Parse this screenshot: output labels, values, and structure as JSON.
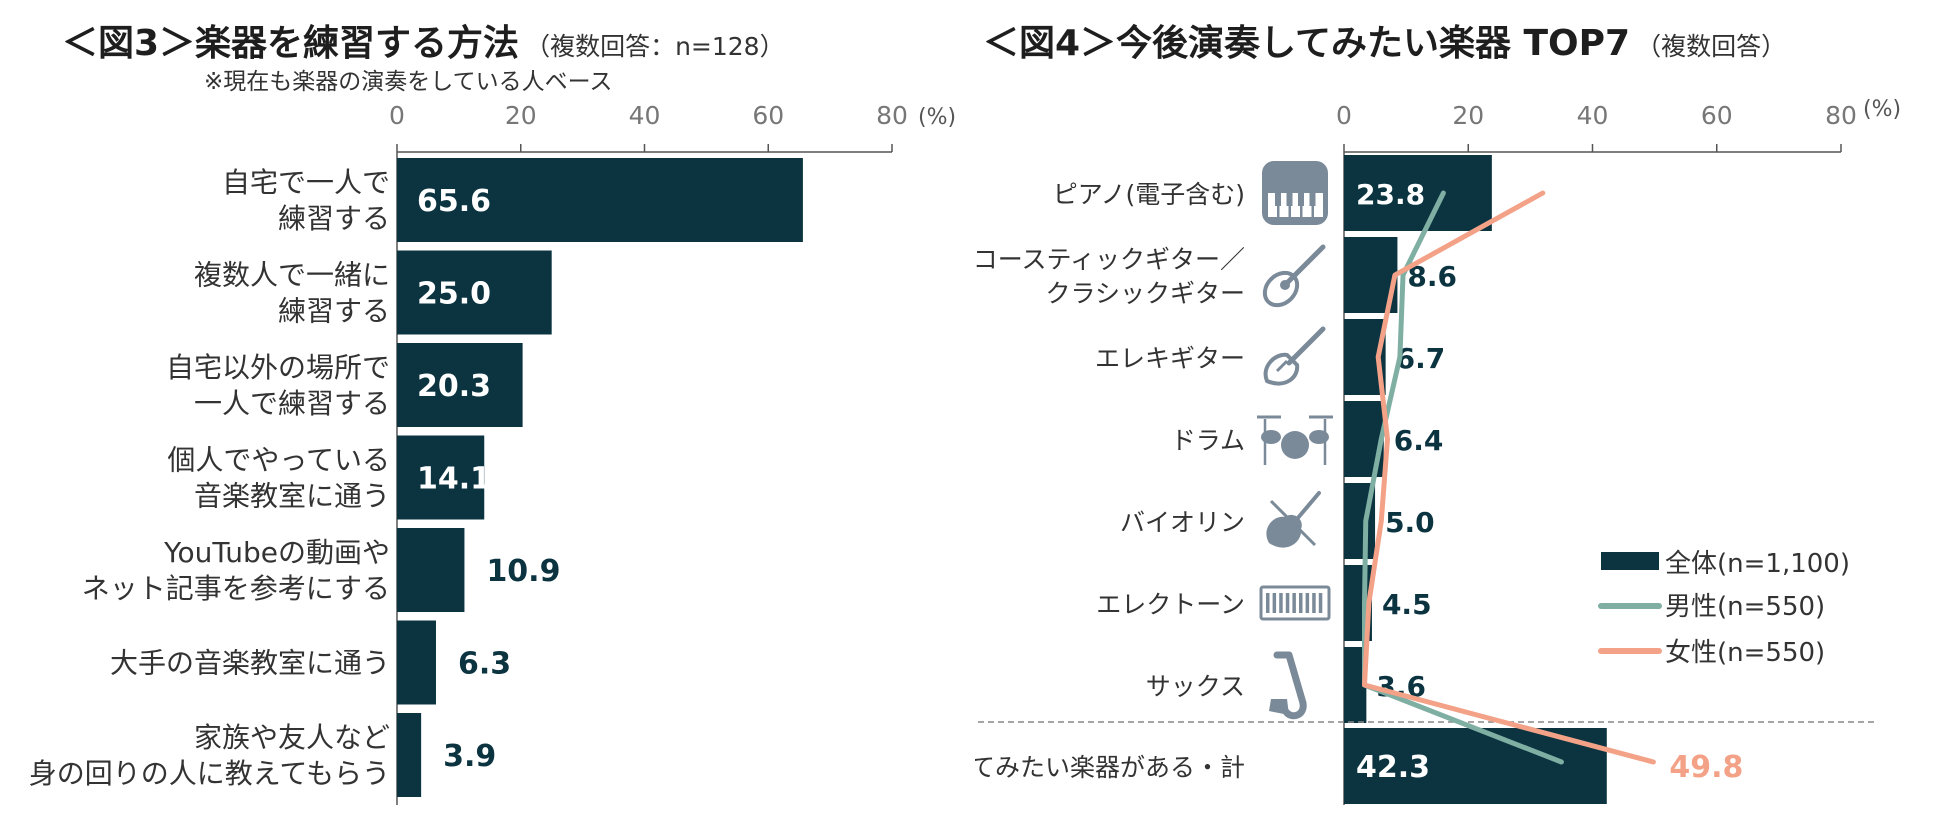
{
  "colors": {
    "bar": "#0b3440",
    "male": "#7faea3",
    "female": "#f3a288",
    "axis": "#555555",
    "divider": "#888888"
  },
  "chart_data": [
    {
      "type": "bar",
      "title": "＜図3＞楽器を練習する方法",
      "title_note": "（複数回答：n=128）",
      "subtitle": "※現在も楽器の演奏をしている人ベース",
      "orientation": "horizontal",
      "categories": [
        [
          "自宅で一人で",
          "練習する"
        ],
        [
          "複数人で一緒に",
          "練習する"
        ],
        [
          "自宅以外の場所で",
          "一人で練習する"
        ],
        [
          "個人でやっている",
          "音楽教室に通う"
        ],
        [
          "YouTubeの動画や",
          "ネット記事を参考にする"
        ],
        [
          "大手の音楽教室に通う"
        ],
        [
          "家族や友人など",
          "身の回りの人に教えてもらう"
        ]
      ],
      "values": [
        65.6,
        25.0,
        20.3,
        14.1,
        10.9,
        6.3,
        3.9
      ],
      "value_labels": [
        "65.6",
        "25.0",
        "20.3",
        "14.1",
        "10.9",
        "6.3",
        "3.9"
      ],
      "xlim": [
        0,
        80
      ],
      "ticks": [
        "0",
        "20",
        "40",
        "60",
        "80"
      ],
      "unit_label": "(%)"
    },
    {
      "type": "bar",
      "title": "＜図4＞今後演奏してみたい楽器 TOP7",
      "title_note": "（複数回答）",
      "orientation": "horizontal",
      "categories": [
        [
          "ピアノ(電子含む)"
        ],
        [
          "アコースティックギター／",
          "クラシックギター"
        ],
        [
          "エレキギター"
        ],
        [
          "ドラム"
        ],
        [
          "バイオリン"
        ],
        [
          "エレクトーン"
        ],
        [
          "サックス"
        ]
      ],
      "icons": [
        "piano-icon",
        "acoustic-guitar-icon",
        "electric-guitar-icon",
        "drum-icon",
        "violin-icon",
        "electone-icon",
        "saxophone-icon"
      ],
      "series": [
        {
          "name": "全体(n=1,100)",
          "kind": "bar",
          "values": [
            23.8,
            8.6,
            6.7,
            6.4,
            5.0,
            4.5,
            3.6
          ],
          "total": 42.3
        },
        {
          "name": "男性(n=550)",
          "kind": "line",
          "values": [
            16,
            9.5,
            9,
            6,
            3.5,
            3.3,
            3.3
          ],
          "total": 35
        },
        {
          "name": "女性(n=550)",
          "kind": "line",
          "values": [
            32,
            8.2,
            5.5,
            7,
            6,
            4,
            3.3
          ],
          "total": 49.8
        }
      ],
      "value_labels": [
        "23.8",
        "8.6",
        "6.7",
        "6.4",
        "5.0",
        "4.5",
        "3.6"
      ],
      "total_category": "演奏してみたい楽器がある・計",
      "total_label": "42.3",
      "total_female_label": "49.8",
      "xlim": [
        0,
        80
      ],
      "ticks": [
        "0",
        "20",
        "40",
        "60",
        "80"
      ],
      "unit_label": "(%)",
      "legend": [
        "全体(n=1,100)",
        "男性(n=550)",
        "女性(n=550)"
      ],
      "legend_position": "right"
    }
  ]
}
